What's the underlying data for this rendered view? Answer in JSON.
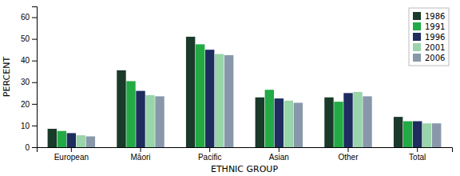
{
  "chart_data": {
    "type": "bar",
    "categories": [
      "European",
      "Māori",
      "Pacific",
      "Asian",
      "Other",
      "Total"
    ],
    "series": [
      {
        "name": "1986",
        "color": "#1a3a2a",
        "values": [
          8.5,
          35.5,
          51.0,
          23.0,
          23.0,
          14.0
        ]
      },
      {
        "name": "1991",
        "color": "#22aa44",
        "values": [
          7.5,
          30.5,
          47.5,
          26.5,
          21.0,
          12.0
        ]
      },
      {
        "name": "1996",
        "color": "#1e2d5e",
        "values": [
          6.5,
          26.0,
          45.0,
          22.5,
          25.0,
          12.0
        ]
      },
      {
        "name": "2001",
        "color": "#99d4aa",
        "values": [
          5.5,
          24.0,
          43.0,
          21.5,
          25.5,
          11.0
        ]
      },
      {
        "name": "2006",
        "color": "#8898aa",
        "values": [
          5.0,
          23.5,
          42.5,
          20.5,
          23.5,
          11.0
        ]
      }
    ],
    "xlabel": "ETHNIC GROUP",
    "ylabel": "PERCENT",
    "ylim": [
      0,
      65
    ],
    "yticks": [
      0,
      10,
      20,
      30,
      40,
      50,
      60
    ],
    "grid": false,
    "legend": "upper right"
  }
}
